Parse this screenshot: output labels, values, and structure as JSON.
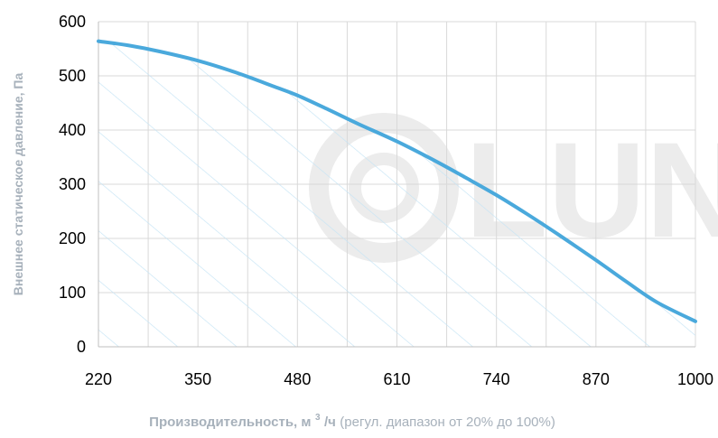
{
  "chart_data": {
    "type": "area",
    "title": "",
    "ylabel": "Внешнее статическое давление, Па",
    "xlabel_bold": "Производительность, м",
    "xlabel_sup": "3",
    "xlabel_bold_tail": "/ч",
    "xlabel_normal": " (регул. диапазон от 20% до 100%)",
    "xlim": [
      220,
      1000
    ],
    "ylim": [
      0,
      600
    ],
    "x_ticks": [
      220,
      350,
      480,
      610,
      740,
      870,
      1000
    ],
    "y_ticks": [
      0,
      100,
      200,
      300,
      400,
      500,
      600
    ],
    "grid": true,
    "legend": "none",
    "series": [
      {
        "x": [
          220,
          260,
          300,
          350,
          400,
          450,
          480,
          520,
          560,
          610,
          660,
          700,
          740,
          780,
          820,
          870,
          910,
          950,
          1000
        ],
        "y": [
          564,
          556,
          545,
          528,
          506,
          480,
          464,
          438,
          411,
          379,
          343,
          312,
          280,
          245,
          208,
          160,
          120,
          82,
          47
        ],
        "color": "#4aa9dc",
        "fill_hatch": true
      }
    ],
    "watermark_text": "LUN"
  }
}
